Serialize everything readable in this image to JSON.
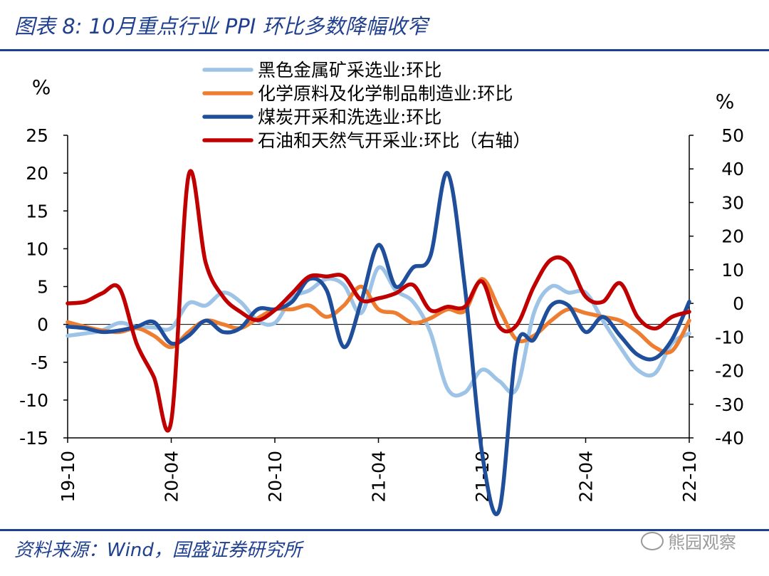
{
  "header": {
    "title": "图表 8:  10月重点行业 PPI 环比多数降幅收窄"
  },
  "footer": {
    "source": "资料来源：Wind，国盛证券研究所",
    "watermark": "熊园观察"
  },
  "chart_data": {
    "type": "line",
    "title": "图表 8:  10月重点行业 PPI 环比多数降幅收窄",
    "y_unit_left": "%",
    "y_unit_right": "%",
    "ylim_left": [
      -15,
      25
    ],
    "ylim_right": [
      -40,
      50
    ],
    "yticks_left": [
      -15,
      -10,
      -5,
      0,
      5,
      10,
      15,
      20,
      25
    ],
    "yticks_right": [
      -40,
      -30,
      -20,
      -10,
      0,
      10,
      20,
      30,
      40,
      50
    ],
    "x": [
      "19-10",
      "19-11",
      "19-12",
      "20-01",
      "20-02",
      "20-03",
      "20-04",
      "20-05",
      "20-06",
      "20-07",
      "20-08",
      "20-09",
      "20-10",
      "20-11",
      "20-12",
      "21-01",
      "21-02",
      "21-03",
      "21-04",
      "21-05",
      "21-06",
      "21-07",
      "21-08",
      "21-09",
      "21-10",
      "21-11",
      "21-12",
      "22-01",
      "22-02",
      "22-03",
      "22-04",
      "22-05",
      "22-06",
      "22-07",
      "22-08",
      "22-09",
      "22-10"
    ],
    "xtick_labels": [
      "19-10",
      "20-04",
      "20-10",
      "21-04",
      "21-10",
      "22-04",
      "22-10"
    ],
    "legend_position": "top",
    "series": [
      {
        "name": "黑色金属矿采选业:环比",
        "axis": "left",
        "color": "#9dc3e6",
        "values": [
          -1.5,
          -1.2,
          -0.8,
          0.2,
          -0.3,
          -0.4,
          -0.5,
          2.8,
          2.5,
          4.2,
          3.0,
          0.5,
          0.2,
          3.5,
          4.5,
          6.0,
          5.2,
          1.5,
          7.5,
          4.5,
          3.0,
          -1.0,
          -8.5,
          -9.0,
          -6.0,
          -7.5,
          -8.5,
          1.5,
          5.0,
          4.2,
          4.2,
          0.5,
          -3.0,
          -6.0,
          -6.5,
          -2.5,
          -1.2
        ]
      },
      {
        "name": "化学原料及化学制品制造业:环比",
        "axis": "left",
        "color": "#ed7d31",
        "values": [
          0.3,
          -0.3,
          -0.8,
          -1.0,
          -0.5,
          -1.5,
          -3.0,
          -1.0,
          0.5,
          0.0,
          -0.5,
          0.8,
          2.0,
          2.0,
          2.5,
          1.0,
          2.5,
          5.0,
          2.0,
          1.5,
          0.2,
          0.8,
          2.0,
          1.8,
          6.0,
          2.0,
          -2.0,
          -1.5,
          0.5,
          2.0,
          1.5,
          1.0,
          0.5,
          -1.0,
          -3.0,
          -3.5,
          0.5
        ]
      },
      {
        "name": "煤炭开采和洗选业:环比",
        "axis": "left",
        "color": "#1f4e9b",
        "values": [
          -0.3,
          -0.5,
          -1.0,
          -0.8,
          -0.3,
          0.3,
          -2.5,
          -1.5,
          0.5,
          -1.0,
          -0.5,
          2.0,
          2.0,
          3.0,
          6.0,
          4.5,
          -3.0,
          3.0,
          10.5,
          5.0,
          7.5,
          9.0,
          20.0,
          5.0,
          -17.0,
          -24.5,
          -3.0,
          -2.0,
          2.5,
          2.5,
          -1.0,
          1.0,
          -1.5,
          -4.0,
          -4.5,
          -2.0,
          3.0
        ]
      },
      {
        "name": "石油和天然气开采业:环比（右轴）",
        "axis": "right",
        "color": "#c00000",
        "values": [
          0.0,
          0.5,
          3.0,
          4.5,
          -12.0,
          -22.0,
          -35.0,
          38.0,
          12.0,
          2.0,
          -2.5,
          -5.0,
          -2.0,
          3.0,
          8.0,
          8.0,
          8.0,
          1.0,
          1.5,
          3.0,
          5.5,
          -2.0,
          -1.0,
          -1.0,
          6.5,
          -7.0,
          -6.5,
          5.0,
          13.0,
          12.0,
          2.0,
          0.5,
          6.0,
          -4.0,
          -7.5,
          -4.0,
          -2.5
        ]
      }
    ]
  }
}
